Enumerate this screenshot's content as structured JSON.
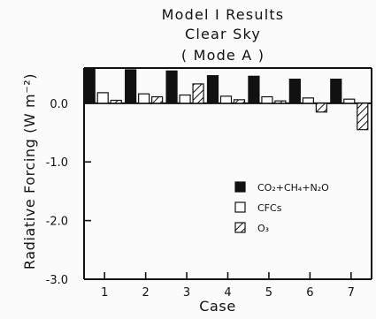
{
  "chart_data": {
    "type": "bar",
    "title_lines": [
      "Model I Results",
      "Clear Sky",
      "( Mode A )"
    ],
    "xlabel": "Case",
    "ylabel": "Radiative Forcing (W m⁻²)",
    "categories": [
      "1",
      "2",
      "3",
      "4",
      "5",
      "6",
      "7"
    ],
    "ylim": [
      -3.0,
      0.6
    ],
    "yticks": [
      0.0,
      -1.0,
      -2.0,
      -3.0
    ],
    "ytick_labels": [
      "0.0",
      "-1.0",
      "-2.0",
      "-3.0"
    ],
    "legend_position": "middle-right",
    "series": [
      {
        "name": "CO₂+CH₄+N₂O",
        "fill": "solid",
        "color": "#111111",
        "values": [
          0.58,
          0.57,
          0.55,
          0.47,
          0.46,
          0.41,
          0.41
        ]
      },
      {
        "name": "CFCs",
        "fill": "open",
        "color": "#ffffff",
        "values": [
          0.18,
          0.16,
          0.14,
          0.12,
          0.11,
          0.09,
          0.07
        ]
      },
      {
        "name": "O₃",
        "fill": "hatched",
        "color": "#ffffff",
        "values": [
          0.05,
          0.11,
          0.33,
          0.06,
          0.04,
          -0.15,
          -0.45
        ]
      }
    ]
  }
}
